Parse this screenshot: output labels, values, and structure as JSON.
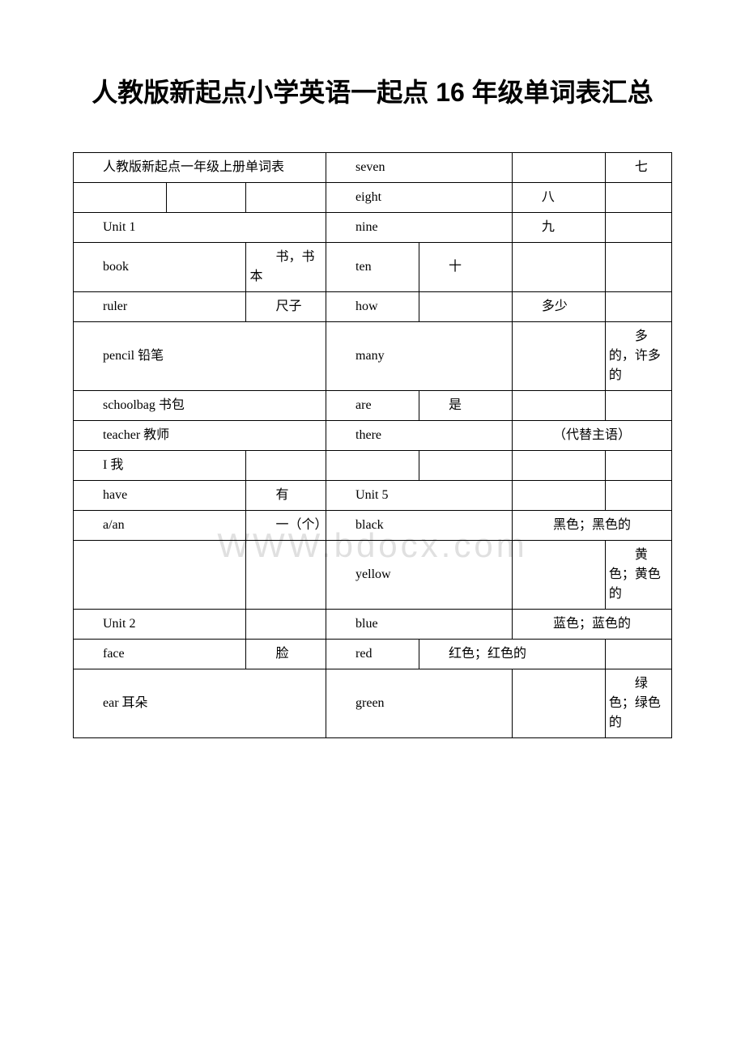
{
  "title": "人教版新起点小学英语一起点 16 年级单词表汇总",
  "watermark": "WWW.bdocx.com",
  "header_row": {
    "left": "人教版新起点一年级上册单词表",
    "mid": "seven",
    "right": "七"
  },
  "rows": [
    {
      "c1": "",
      "c2": "",
      "c3": "",
      "c4": "eight",
      "c5": "",
      "c6": "八",
      "c7": ""
    },
    {
      "c1_span3": "Unit 1",
      "c4": "nine",
      "c5": "",
      "c6": "九",
      "c7": ""
    },
    {
      "c1_span2": "book",
      "c3": "书，书本",
      "c4": "ten",
      "c5": "十",
      "c6": "",
      "c7": ""
    },
    {
      "c1_span2": "ruler",
      "c3": "尺子",
      "c4": "how",
      "c5": "",
      "c6": "多少",
      "c7": ""
    },
    {
      "c1_span3": "pencil 铅笔",
      "c4": "many",
      "c5": "",
      "c6": "",
      "c7": "多的，许多的"
    },
    {
      "c1_span3": "schoolbag 书包",
      "c4": "are",
      "c5": "是",
      "c6": "",
      "c7": ""
    },
    {
      "c1_span3": "teacher 教师",
      "c4": "there",
      "c5": "",
      "c67": "（代替主语）"
    },
    {
      "c1_span2": "I 我",
      "c3": "",
      "c4": "",
      "c5": "",
      "c6": "",
      "c7": ""
    },
    {
      "c1_span2": "have",
      "c3": "有",
      "c4": "Unit 5",
      "c5": "",
      "c6": "",
      "c7": ""
    },
    {
      "c1_span2": "a/an",
      "c3": "一（个）",
      "c4": "black",
      "c5": "",
      "c67": "黑色；黑色的"
    },
    {
      "c1_span2": "",
      "c3": "",
      "c4": "yellow",
      "c5": "",
      "c6": "",
      "c7": "黄色；黄色的"
    },
    {
      "c1_span2": "Unit 2",
      "c3": "",
      "c4": "blue",
      "c5": "",
      "c67": "蓝色；蓝色的"
    },
    {
      "c1_span2": "face",
      "c3": "脸",
      "c4": "red",
      "c567": "红色；红色的"
    },
    {
      "c1_span3": "ear 耳朵",
      "c4": "green",
      "c5": "",
      "c6": "",
      "c7": "绿色；绿色的"
    }
  ]
}
